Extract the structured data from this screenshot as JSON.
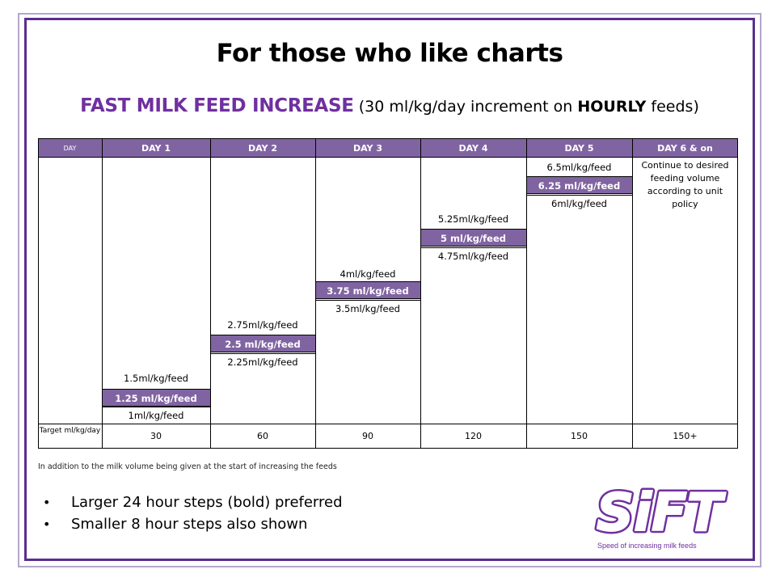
{
  "title": "For those who like charts",
  "subtitle": {
    "main": "FAST MILK FEED INCREASE",
    "paren_open": " (30 ml/kg/day increment on ",
    "bold": "HOURLY",
    "paren_close": " feeds)"
  },
  "table": {
    "headers": [
      "DAY",
      "DAY 1",
      "DAY 2",
      "DAY 3",
      "DAY 4",
      "DAY 5",
      "DAY 6 & on"
    ],
    "day1": {
      "upper": "1.5ml/kg/feed",
      "bold": "1.25 ml/kg/feed",
      "lower": "1ml/kg/feed"
    },
    "day2": {
      "upper": "2.75ml/kg/feed",
      "bold": "2.5 ml/kg/feed",
      "lower": "2.25ml/kg/feed"
    },
    "day3": {
      "upper": "4ml/kg/feed",
      "bold": "3.75 ml/kg/feed",
      "lower": "3.5ml/kg/feed"
    },
    "day4": {
      "upper": "5.25ml/kg/feed",
      "bold": "5 ml/kg/feed",
      "lower": "4.75ml/kg/feed"
    },
    "day5": {
      "upper": "6.5ml/kg/feed",
      "bold": "6.25 ml/kg/feed",
      "lower": "6ml/kg/feed"
    },
    "day6": "Continue to desired feeding volume according to unit policy",
    "target_label": "Target ml/kg/day",
    "targets": [
      "30",
      "60",
      "90",
      "120",
      "150",
      "150+"
    ]
  },
  "note": "In addition to the milk volume being given at the start of increasing the feeds",
  "bullets": [
    "Larger 24 hour steps (bold) preferred",
    "Smaller 8 hour steps also shown"
  ],
  "logo": {
    "text": "SiFT",
    "caption": "Speed of increasing milk feeds"
  },
  "colors": {
    "purple_dark": "#5b2d90",
    "purple_header": "#8064a2",
    "purple_text": "#7030a0"
  }
}
